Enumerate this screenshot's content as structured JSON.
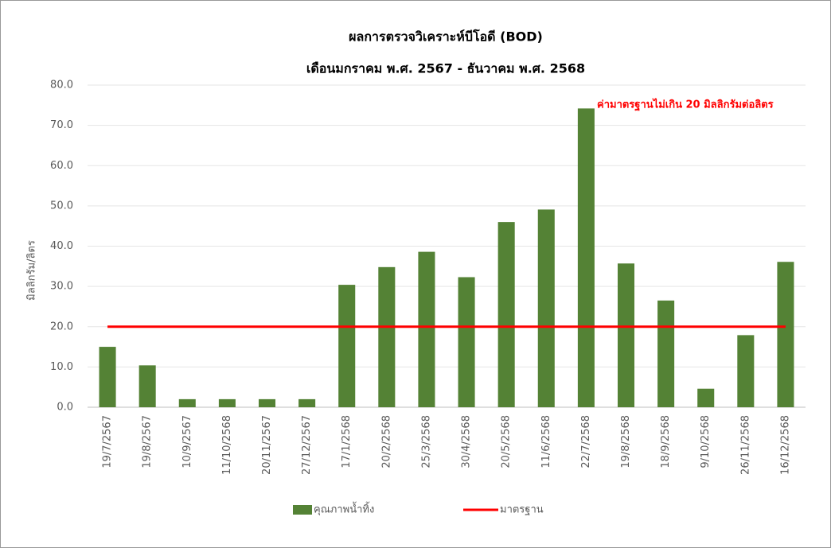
{
  "chart_data": {
    "type": "bar",
    "title": "ผลการตรวจวิเคราะห์บีโอดี (BOD)",
    "subtitle": "เดือนมกราคม พ.ศ. 2567 - ธันวาคม พ.ศ. 2568",
    "y_label": "มิลลิกรัม/ลิตร",
    "annotation": "ค่ามาตรฐานไม่เกิน 20 มิลลิกรัมต่อลิตร",
    "categories": [
      "19/7/2567",
      "19/8/2567",
      "10/9/2567",
      "11/10/2568",
      "20/11/2567",
      "27/12/2567",
      "17/1/2568",
      "20/2/2568",
      "25/3/2568",
      "30/4/2568",
      "20/5/2568",
      "11/6/2568",
      "22/7/2568",
      "19/8/2568",
      "18/9/2568",
      "9/10/2568",
      "26/11/2568",
      "16/12/2568"
    ],
    "series": [
      {
        "name": "คุณภาพน้ำทิ้ง",
        "type": "bar",
        "color": "#548235",
        "values": [
          15,
          10.4,
          2,
          2,
          2,
          2,
          30.4,
          34.8,
          38.6,
          32.3,
          46,
          49.1,
          74.2,
          35.7,
          26.5,
          4.6,
          17.9,
          36.1
        ]
      },
      {
        "name": "มาตรฐาน",
        "type": "line",
        "color": "#ff0000",
        "values": [
          20,
          20,
          20,
          20,
          20,
          20,
          20,
          20,
          20,
          20,
          20,
          20,
          20,
          20,
          20,
          20,
          20,
          20
        ]
      }
    ],
    "ylim": [
      0,
      80
    ],
    "yticks": [
      {
        "value": 0,
        "label": "0.0"
      },
      {
        "value": 10,
        "label": "10.0"
      },
      {
        "value": 20,
        "label": "20.0"
      },
      {
        "value": 30,
        "label": "30.0"
      },
      {
        "value": 40,
        "label": "40.0"
      },
      {
        "value": 50,
        "label": "50.0"
      },
      {
        "value": 60,
        "label": "60.0"
      },
      {
        "value": 70,
        "label": "70.0"
      },
      {
        "value": 80,
        "label": "80.0"
      }
    ],
    "grid": true,
    "legend": "bottom"
  }
}
